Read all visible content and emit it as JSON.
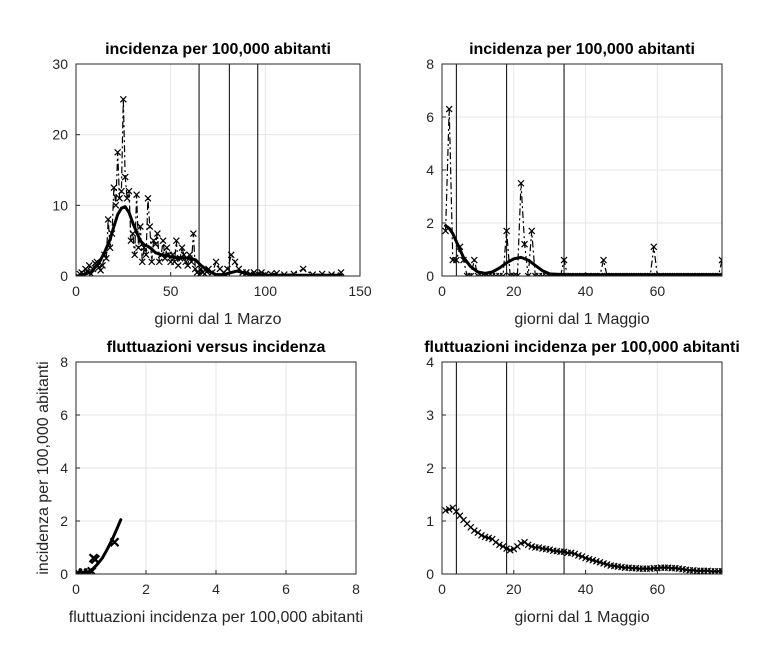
{
  "chart_data": [
    {
      "type": "line",
      "title": "incidenza per 100,000 abitanti",
      "xlabel": "giorni dal 1 Marzo",
      "ylabel": "",
      "xlim": [
        0,
        150
      ],
      "ylim": [
        0,
        30
      ],
      "xticks": [
        "0",
        "50",
        "100",
        "150"
      ],
      "yticks": [
        "0",
        "10",
        "20",
        "30"
      ],
      "grid": true,
      "vlines": [
        65,
        81,
        96
      ],
      "series": [
        {
          "style": "dashed-x",
          "x": [
            1,
            2,
            3,
            4,
            5,
            6,
            7,
            8,
            9,
            10,
            11,
            12,
            13,
            14,
            15,
            16,
            17,
            18,
            19,
            20,
            21,
            22,
            23,
            24,
            25,
            26,
            27,
            28,
            29,
            30,
            31,
            32,
            33,
            34,
            35,
            36,
            37,
            38,
            39,
            40,
            41,
            42,
            43,
            44,
            45,
            46,
            47,
            48,
            49,
            50,
            51,
            52,
            53,
            54,
            55,
            56,
            57,
            58,
            59,
            60,
            61,
            62,
            63,
            64,
            65,
            66,
            67,
            68,
            69,
            70,
            72,
            74,
            76,
            78,
            80,
            82,
            84,
            86,
            88,
            90,
            92,
            94,
            96,
            98,
            100,
            103,
            106,
            110,
            115,
            120,
            125,
            130,
            135,
            140
          ],
          "y": [
            0,
            0.3,
            0.5,
            0.2,
            1,
            0.6,
            1.5,
            0.3,
            1,
            1.8,
            2,
            1.2,
            0.8,
            1.5,
            3,
            2.5,
            8,
            4,
            6,
            12.5,
            10,
            17.5,
            11,
            12,
            25,
            14,
            11,
            12,
            5,
            6,
            3,
            11.5,
            4,
            7,
            2,
            4,
            3,
            11,
            7,
            2,
            5,
            4.5,
            6,
            2,
            3,
            5,
            2.5,
            4,
            3,
            2,
            3,
            2,
            5,
            1.5,
            2.5,
            4,
            3,
            2,
            1.5,
            3,
            2,
            6,
            1,
            0.5,
            0.2,
            1,
            0.5,
            0.3,
            0.6,
            1,
            0.5,
            2,
            1,
            0.5,
            1,
            3,
            2,
            1,
            0.5,
            0.5,
            0.3,
            0.5,
            0.3,
            0.5,
            0.2,
            0.3,
            0.4,
            0.2,
            0.3,
            1,
            0.2,
            0.3,
            0.2,
            0.5
          ]
        },
        {
          "style": "smooth",
          "x": [
            1,
            4,
            8,
            12,
            15,
            18,
            20,
            22,
            24,
            26,
            28,
            30,
            32,
            34,
            36,
            38,
            40,
            42,
            45,
            48,
            50,
            53,
            56,
            60,
            63,
            66,
            70,
            74,
            78,
            82,
            85,
            88,
            92,
            96,
            100,
            110,
            120,
            130,
            140
          ],
          "y": [
            0,
            0.2,
            0.6,
            1.8,
            3.3,
            5.2,
            7,
            8.7,
            9.6,
            9.8,
            9,
            7.5,
            6.2,
            5,
            4.4,
            4.2,
            3.8,
            3.3,
            3,
            2.9,
            2.7,
            2.6,
            2.6,
            2.5,
            2.3,
            1.5,
            0.7,
            0.2,
            0.2,
            0.5,
            0.7,
            0.5,
            0.2,
            0.1,
            0.1,
            0.1,
            0.1,
            0.1,
            0.1
          ]
        }
      ]
    },
    {
      "type": "line",
      "title": "incidenza per 100,000 abitanti",
      "xlabel": "giorni dal 1 Maggio",
      "ylabel": "",
      "xlim": [
        0,
        78
      ],
      "ylim": [
        0,
        8
      ],
      "xticks": [
        "0",
        "20",
        "40",
        "60"
      ],
      "yticks": [
        "0",
        "2",
        "4",
        "6",
        "8"
      ],
      "grid": true,
      "vlines": [
        4,
        18,
        34
      ],
      "series": [
        {
          "style": "dashed-x",
          "x": [
            1,
            2,
            3,
            4,
            5,
            6,
            7,
            8,
            9,
            10,
            11,
            12,
            13,
            14,
            15,
            16,
            17,
            18,
            19,
            20,
            21,
            22,
            23,
            24,
            25,
            26,
            27,
            28,
            29,
            30,
            31,
            32,
            33,
            34,
            35,
            36,
            37,
            38,
            39,
            40,
            41,
            42,
            43,
            44,
            45,
            46,
            47,
            48,
            49,
            50,
            51,
            52,
            53,
            54,
            55,
            56,
            57,
            58,
            59,
            60,
            61,
            62,
            63,
            64,
            65,
            66,
            67,
            68,
            69,
            70,
            71,
            72,
            73,
            74,
            75,
            76,
            77,
            78
          ],
          "y": [
            1.7,
            6.3,
            0.6,
            0.6,
            1.1,
            0.6,
            0,
            0,
            0.6,
            0,
            0,
            0,
            0,
            0,
            0,
            0,
            0,
            1.7,
            0,
            0,
            0,
            3.5,
            1.2,
            0,
            1.7,
            0,
            0,
            0,
            0,
            0,
            0,
            0,
            0,
            0.6,
            0,
            0,
            0,
            0,
            0,
            0,
            0,
            0,
            0,
            0,
            0.6,
            0,
            0,
            0,
            0,
            0,
            0,
            0,
            0,
            0,
            0,
            0,
            0,
            0,
            1.1,
            0,
            0,
            0,
            0,
            0,
            0,
            0,
            0,
            0,
            0,
            0,
            0,
            0,
            0,
            0,
            0,
            0,
            0,
            0.6
          ]
        },
        {
          "style": "smooth",
          "x": [
            1,
            2,
            3,
            4,
            5,
            6,
            8,
            10,
            12,
            14,
            16,
            18,
            20,
            22,
            24,
            26,
            28,
            30,
            34,
            40,
            50,
            60,
            70,
            78
          ],
          "y": [
            1.9,
            1.8,
            1.6,
            1.3,
            1.0,
            0.7,
            0.35,
            0.15,
            0.1,
            0.15,
            0.3,
            0.5,
            0.65,
            0.7,
            0.6,
            0.4,
            0.2,
            0.08,
            0.05,
            0.05,
            0.05,
            0.05,
            0.05,
            0.05
          ]
        }
      ]
    },
    {
      "type": "line",
      "title": "fluttuazioni versus incidenza",
      "xlabel": "fluttuazioni incidenza per 100,000 abitanti",
      "ylabel": "incidenza per 100,000 abitanti",
      "xlim": [
        0,
        8
      ],
      "ylim": [
        0,
        8
      ],
      "xticks": [
        "0",
        "2",
        "4",
        "6",
        "8"
      ],
      "yticks": [
        "0",
        "2",
        "4",
        "6",
        "8"
      ],
      "grid": true,
      "vlines": [],
      "series": [
        {
          "style": "thick-curve",
          "x": [
            0.05,
            0.15,
            0.25,
            0.35,
            0.45,
            0.6,
            0.75,
            0.9,
            1.05,
            1.2,
            1.28
          ],
          "y": [
            0.05,
            0.05,
            0.05,
            0.08,
            0.15,
            0.35,
            0.6,
            0.95,
            1.35,
            1.8,
            2.05
          ]
        },
        {
          "style": "bold-x",
          "x": [
            0.05,
            0.2,
            0.35,
            0.45,
            0.5,
            0.55,
            1.1
          ],
          "y": [
            0.05,
            0.05,
            0.05,
            0.1,
            0.6,
            0.55,
            1.2
          ]
        }
      ]
    },
    {
      "type": "line",
      "title": "fluttuazioni incidenza per 100,000 abitanti",
      "xlabel": "giorni dal 1 Maggio",
      "ylabel": "",
      "xlim": [
        0,
        78
      ],
      "ylim": [
        0,
        4
      ],
      "xticks": [
        "0",
        "20",
        "40",
        "60"
      ],
      "yticks": [
        "0",
        "1",
        "2",
        "3",
        "4"
      ],
      "grid": true,
      "vlines": [
        4,
        18,
        34
      ],
      "series": [
        {
          "style": "line-x",
          "x": [
            1,
            2,
            3,
            4,
            5,
            6,
            7,
            8,
            9,
            10,
            11,
            12,
            13,
            14,
            15,
            16,
            17,
            18,
            19,
            20,
            21,
            22,
            23,
            24,
            25,
            26,
            27,
            28,
            29,
            30,
            31,
            32,
            33,
            34,
            35,
            36,
            37,
            38,
            39,
            40,
            41,
            42,
            43,
            44,
            45,
            46,
            47,
            48,
            49,
            50,
            51,
            52,
            53,
            54,
            55,
            56,
            57,
            58,
            59,
            60,
            61,
            62,
            63,
            64,
            65,
            66,
            67,
            68,
            69,
            70,
            71,
            72,
            73,
            74,
            75,
            76,
            77,
            78
          ],
          "y": [
            1.2,
            1.22,
            1.25,
            1.18,
            1.1,
            1.02,
            0.95,
            0.88,
            0.82,
            0.78,
            0.73,
            0.7,
            0.68,
            0.66,
            0.6,
            0.55,
            0.52,
            0.48,
            0.45,
            0.47,
            0.52,
            0.58,
            0.6,
            0.55,
            0.52,
            0.5,
            0.5,
            0.48,
            0.47,
            0.46,
            0.44,
            0.43,
            0.42,
            0.42,
            0.4,
            0.4,
            0.38,
            0.35,
            0.33,
            0.3,
            0.28,
            0.26,
            0.24,
            0.22,
            0.2,
            0.18,
            0.16,
            0.15,
            0.14,
            0.13,
            0.12,
            0.12,
            0.11,
            0.11,
            0.1,
            0.1,
            0.1,
            0.1,
            0.11,
            0.11,
            0.12,
            0.12,
            0.12,
            0.11,
            0.11,
            0.1,
            0.09,
            0.08,
            0.07,
            0.07,
            0.06,
            0.06,
            0.06,
            0.06,
            0.05,
            0.05,
            0.05,
            0.05
          ]
        }
      ]
    }
  ]
}
